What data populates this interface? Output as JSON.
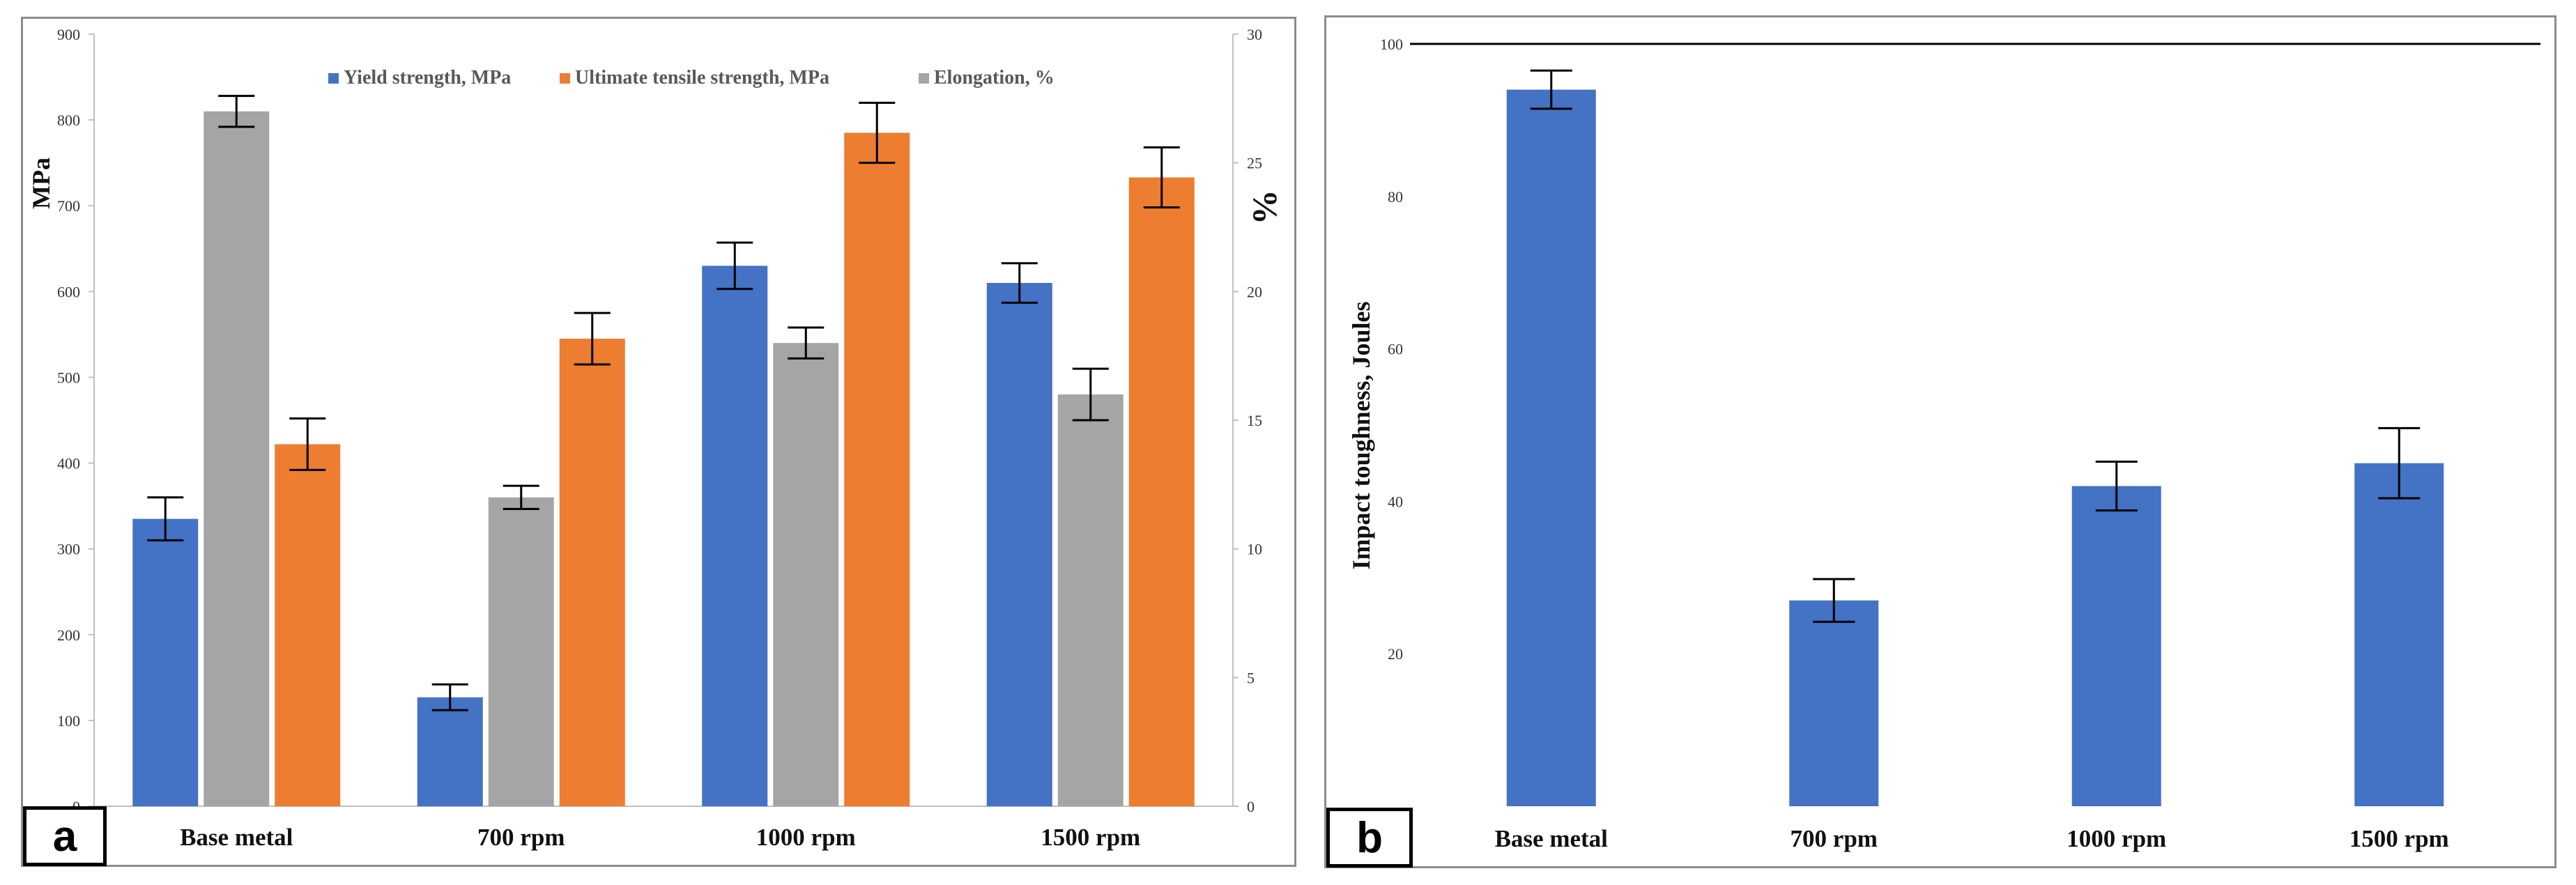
{
  "colors": {
    "blue": "#4472C4",
    "orange": "#ED7D31",
    "gray": "#A5A5A5",
    "axis": "#BFBFBF",
    "errorbar": "#000000"
  },
  "chart_data": [
    {
      "type": "bar",
      "panel_label": "a",
      "categories": [
        "Base metal",
        "700 rpm",
        "1000 rpm",
        "1500 rpm"
      ],
      "series": [
        {
          "name": "Yield strength, MPa",
          "axis": "left",
          "values": [
            335,
            127,
            630,
            610
          ],
          "errors": [
            25,
            15,
            27,
            23
          ]
        },
        {
          "name": "Ultimate tensile strength, MPa",
          "axis": "left",
          "values": [
            422,
            545,
            785,
            733
          ],
          "errors": [
            30,
            30,
            35,
            35
          ]
        },
        {
          "name": "Elongation, %",
          "axis": "right",
          "values": [
            27.0,
            12.0,
            18.0,
            16.0
          ],
          "errors": [
            0.6,
            0.45,
            0.6,
            1.0
          ]
        }
      ],
      "series_order": [
        0,
        2,
        1
      ],
      "left_axis": {
        "label": "MPa",
        "ylim": [
          0,
          900
        ],
        "ticks": [
          "0",
          "100",
          "200",
          "300",
          "400",
          "500",
          "600",
          "700",
          "800",
          "900"
        ]
      },
      "right_axis": {
        "label": "%",
        "ylim": [
          0,
          30
        ],
        "ticks": [
          "0",
          "5",
          "10",
          "15",
          "20",
          "25",
          "30"
        ]
      },
      "legend_position": "top"
    },
    {
      "type": "bar",
      "panel_label": "b",
      "categories": [
        "Base metal",
        "700 rpm",
        "1000 rpm",
        "1500 rpm"
      ],
      "values": [
        94,
        27,
        42,
        45
      ],
      "errors": [
        2.5,
        2.8,
        3.2,
        4.6
      ],
      "ylabel": "Impact toughness, Joules",
      "ylim": [
        0,
        100
      ],
      "ticks": [
        "20",
        "40",
        "60",
        "80",
        "100"
      ]
    }
  ]
}
